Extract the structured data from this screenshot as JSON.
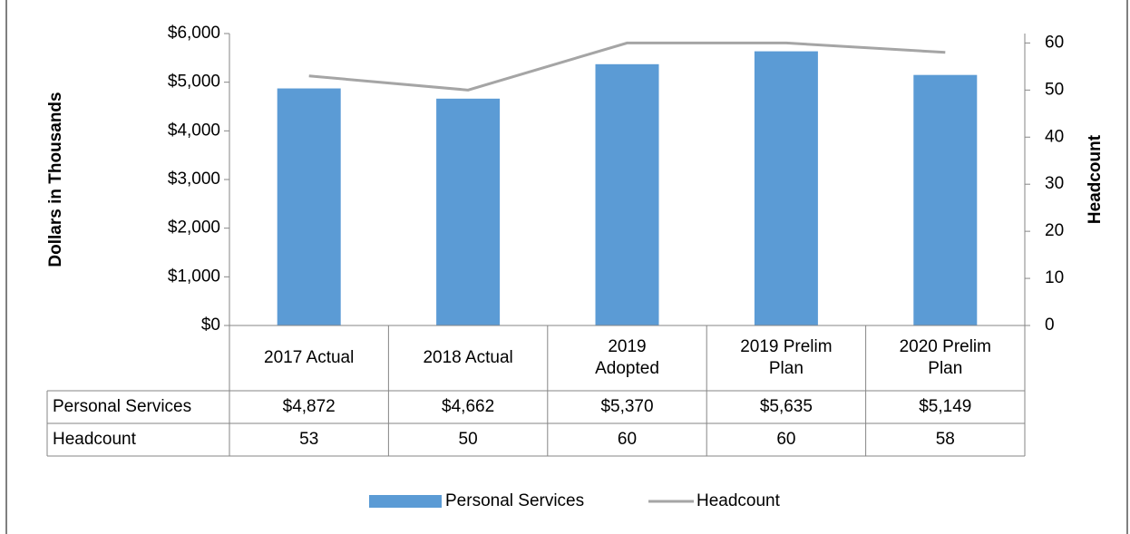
{
  "chart_data": {
    "type": "bar",
    "categories": [
      "2017 Actual",
      "2018 Actual",
      "2019 Adopted",
      "2019 Prelim Plan",
      "2020 Prelim Plan"
    ],
    "series": [
      {
        "name": "Personal Services",
        "type": "bar",
        "color": "#5b9bd5",
        "values": [
          4872,
          4662,
          5370,
          5635,
          5149
        ],
        "value_labels": [
          "$4,872",
          "$4,662",
          "$5,370",
          "$5,635",
          "$5,149"
        ]
      },
      {
        "name": "Headcount",
        "type": "line",
        "axis": "y2",
        "color": "#a5a5a5",
        "values": [
          53,
          50,
          60,
          60,
          58
        ]
      }
    ],
    "ylabel": "Dollars in Thousands",
    "y2label": "Headcount",
    "ylim": [
      0,
      6000
    ],
    "yticks": [
      {
        "value": 0,
        "label": "$0"
      },
      {
        "value": 1000,
        "label": "$1,000"
      },
      {
        "value": 2000,
        "label": "$2,000"
      },
      {
        "value": 3000,
        "label": "$3,000"
      },
      {
        "value": 4000,
        "label": "$4,000"
      },
      {
        "value": 5000,
        "label": "$5,000"
      },
      {
        "value": 6000,
        "label": "$6,000"
      }
    ],
    "y2lim": [
      0,
      62
    ],
    "y2ticks": [
      0,
      10,
      20,
      30,
      40,
      50,
      60
    ],
    "legend": "bottom"
  }
}
